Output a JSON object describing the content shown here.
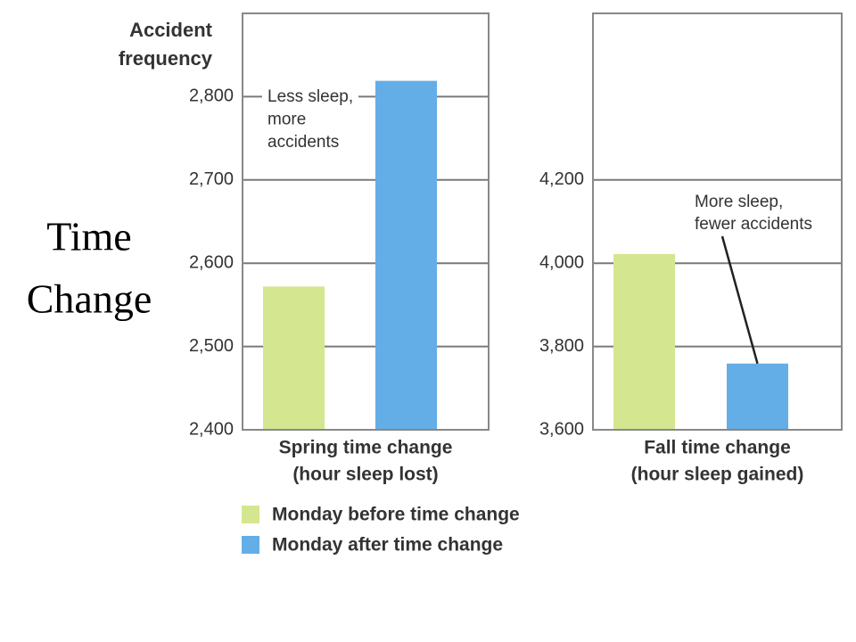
{
  "side_title": [
    "Time",
    "Change"
  ],
  "legend": [
    {
      "name": "Monday before time change",
      "color": "#d4e68f"
    },
    {
      "name": "Monday after time change",
      "color": "#63aee6"
    }
  ],
  "chart_data": [
    {
      "type": "bar",
      "y_label": [
        "Accident",
        "frequency"
      ],
      "x_label": [
        "Spring time change",
        "(hour sleep lost)"
      ],
      "values": [
        2572,
        2819
      ],
      "ylim": [
        2400,
        2900
      ],
      "yticks": [
        {
          "value": 2400,
          "label": "2,400"
        },
        {
          "value": 2500,
          "label": "2,500"
        },
        {
          "value": 2600,
          "label": "2,600"
        },
        {
          "value": 2700,
          "label": "2,700"
        },
        {
          "value": 2800,
          "label": "2,800"
        }
      ],
      "grid": true,
      "annotation": [
        "Less sleep,",
        "more",
        "accidents"
      ]
    },
    {
      "type": "bar",
      "x_label": [
        "Fall time change",
        "(hour sleep gained)"
      ],
      "values": [
        4022,
        3759
      ],
      "ylim": [
        3600,
        4600
      ],
      "yticks": [
        {
          "value": 3600,
          "label": "3,600"
        },
        {
          "value": 3800,
          "label": "3,800"
        },
        {
          "value": 4000,
          "label": "4,000"
        },
        {
          "value": 4200,
          "label": "4,200"
        }
      ],
      "grid": true,
      "annotation": [
        "More sleep,",
        "fewer accidents"
      ]
    }
  ]
}
